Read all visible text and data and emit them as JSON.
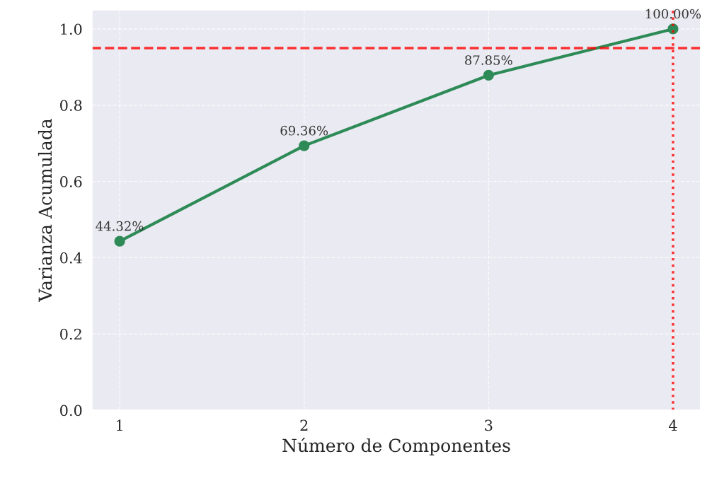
{
  "chart_data": {
    "type": "line",
    "xlabel": "Número de Componentes",
    "ylabel": "Varianza Acumulada",
    "x": [
      1,
      2,
      3,
      4
    ],
    "series": [
      {
        "color": "#2e8b57",
        "values": [
          0.4432,
          0.6936,
          0.8785,
          1.0
        ],
        "value_labels": [
          "44.32%",
          "69.36%",
          "87.85%",
          "100.00%"
        ]
      }
    ],
    "marker": "circle",
    "line_style": "solid",
    "xlim": [
      0.85,
      4.15
    ],
    "xticks": [
      1,
      2,
      3,
      4
    ],
    "ylim": [
      0,
      1.05
    ],
    "yticks": [
      {
        "value": 0,
        "label": "0.0"
      },
      0.2,
      0.4,
      0.6,
      0.8,
      {
        "value": 1,
        "label": "1.0"
      }
    ],
    "ref_lines": [
      {
        "axis": "y",
        "value": 0.95,
        "color": "#ff0000",
        "line_style": "dashed"
      },
      {
        "axis": "x",
        "value": 4,
        "color": "#ff0000",
        "line_style": "dotted"
      }
    ],
    "grid": true
  }
}
